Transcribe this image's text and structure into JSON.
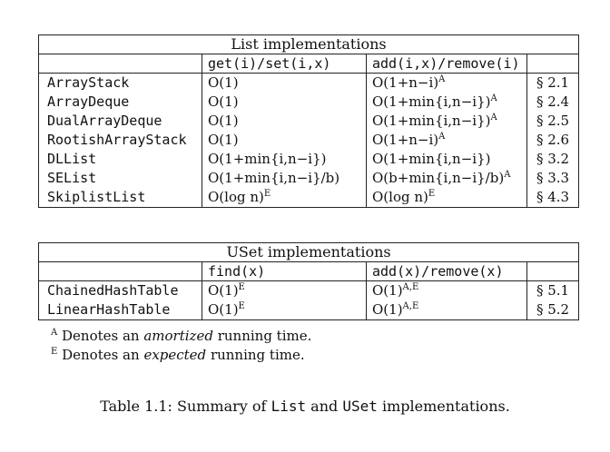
{
  "list_table": {
    "title": "List implementations",
    "headers": [
      "",
      "get(i)/set(i,x)",
      "add(i,x)/remove(i)",
      ""
    ],
    "rows": [
      {
        "name": "ArrayStack",
        "get": "O(1)",
        "get_sup": "",
        "add": "O(1+n−i)",
        "add_sup": "A",
        "ref": "§ 2.1"
      },
      {
        "name": "ArrayDeque",
        "get": "O(1)",
        "get_sup": "",
        "add": "O(1+min{i,n−i})",
        "add_sup": "A",
        "ref": "§ 2.4"
      },
      {
        "name": "DualArrayDeque",
        "get": "O(1)",
        "get_sup": "",
        "add": "O(1+min{i,n−i})",
        "add_sup": "A",
        "ref": "§ 2.5"
      },
      {
        "name": "RootishArrayStack",
        "get": "O(1)",
        "get_sup": "",
        "add": "O(1+n−i)",
        "add_sup": "A",
        "ref": "§ 2.6"
      },
      {
        "name": "DLList",
        "get": "O(1+min{i,n−i})",
        "get_sup": "",
        "add": "O(1+min{i,n−i})",
        "add_sup": "",
        "ref": "§ 3.2"
      },
      {
        "name": "SEList",
        "get": "O(1+min{i,n−i}/b)",
        "get_sup": "",
        "add": "O(b+min{i,n−i}/b)",
        "add_sup": "A",
        "ref": "§ 3.3"
      },
      {
        "name": "SkiplistList",
        "get": "O(log n)",
        "get_sup": "E",
        "add": "O(log n)",
        "add_sup": "E",
        "ref": "§ 4.3"
      }
    ]
  },
  "uset_table": {
    "title": "USet implementations",
    "headers": [
      "",
      "find(x)",
      "add(x)/remove(x)",
      ""
    ],
    "rows": [
      {
        "name": "ChainedHashTable",
        "find": "O(1)",
        "find_sup": "E",
        "add": "O(1)",
        "add_sup": "A,E",
        "ref": "§ 5.1"
      },
      {
        "name": "LinearHashTable",
        "find": "O(1)",
        "find_sup": "E",
        "add": "O(1)",
        "add_sup": "A,E",
        "ref": "§ 5.2"
      }
    ]
  },
  "notes": [
    {
      "mark": "A",
      "before": "Denotes an ",
      "emph": "amortized",
      "after": " running time."
    },
    {
      "mark": "E",
      "before": "Denotes an ",
      "emph": "expected",
      "after": " running time."
    }
  ],
  "caption": {
    "prefix": "Table 1.1: Summary of ",
    "code1": "List",
    "middle": " and ",
    "code2": "USet",
    "suffix": " implementations."
  }
}
